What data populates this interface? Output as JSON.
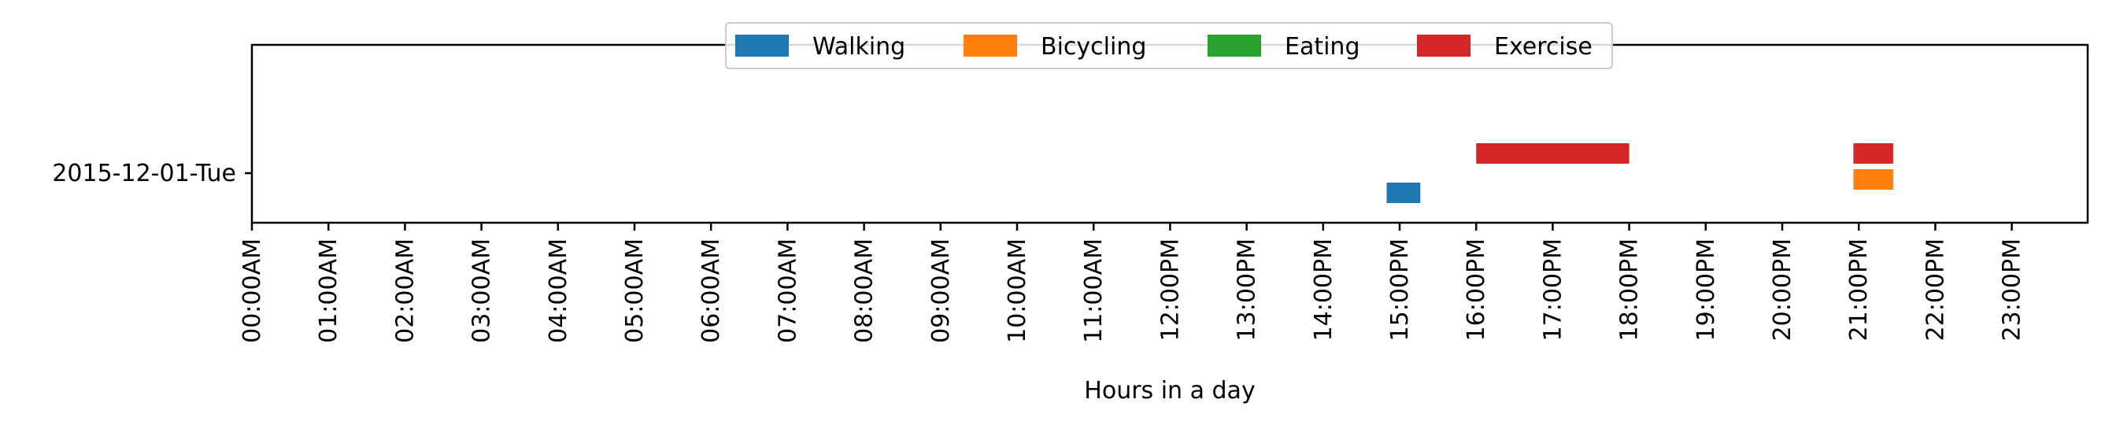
{
  "chart_data": {
    "type": "bar",
    "orientation": "horizontal",
    "title": "",
    "xlabel": "Hours in a day",
    "ylabel": "",
    "xlim": [
      0,
      24
    ],
    "y_categories": [
      "2015-12-01-Tue"
    ],
    "x_ticks": [
      0,
      1,
      2,
      3,
      4,
      5,
      6,
      7,
      8,
      9,
      10,
      11,
      12,
      13,
      14,
      15,
      16,
      17,
      18,
      19,
      20,
      21,
      22,
      23
    ],
    "x_tick_labels": [
      "00:00AM",
      "01:00AM",
      "02:00AM",
      "03:00AM",
      "04:00AM",
      "05:00AM",
      "06:00AM",
      "07:00AM",
      "08:00AM",
      "09:00AM",
      "10:00AM",
      "11:00AM",
      "12:00PM",
      "13:00PM",
      "14:00PM",
      "15:00PM",
      "16:00PM",
      "17:00PM",
      "18:00PM",
      "19:00PM",
      "20:00PM",
      "21:00PM",
      "22:00PM",
      "23:00PM"
    ],
    "legend_location": "upper center",
    "series": [
      {
        "name": "Walking",
        "color": "#1f77b4",
        "lane": 0,
        "intervals": [
          {
            "day": "2015-12-01-Tue",
            "start": 14.83,
            "end": 15.27
          }
        ]
      },
      {
        "name": "Bicycling",
        "color": "#ff7f0e",
        "lane": 1,
        "intervals": [
          {
            "day": "2015-12-01-Tue",
            "start": 20.93,
            "end": 21.45
          }
        ]
      },
      {
        "name": "Eating",
        "color": "#2ca02c",
        "lane": 2,
        "intervals": []
      },
      {
        "name": "Exercise",
        "color": "#d62728",
        "lane": 3,
        "intervals": [
          {
            "day": "2015-12-01-Tue",
            "start": 16.0,
            "end": 18.0
          },
          {
            "day": "2015-12-01-Tue",
            "start": 20.93,
            "end": 21.45
          }
        ]
      }
    ]
  }
}
